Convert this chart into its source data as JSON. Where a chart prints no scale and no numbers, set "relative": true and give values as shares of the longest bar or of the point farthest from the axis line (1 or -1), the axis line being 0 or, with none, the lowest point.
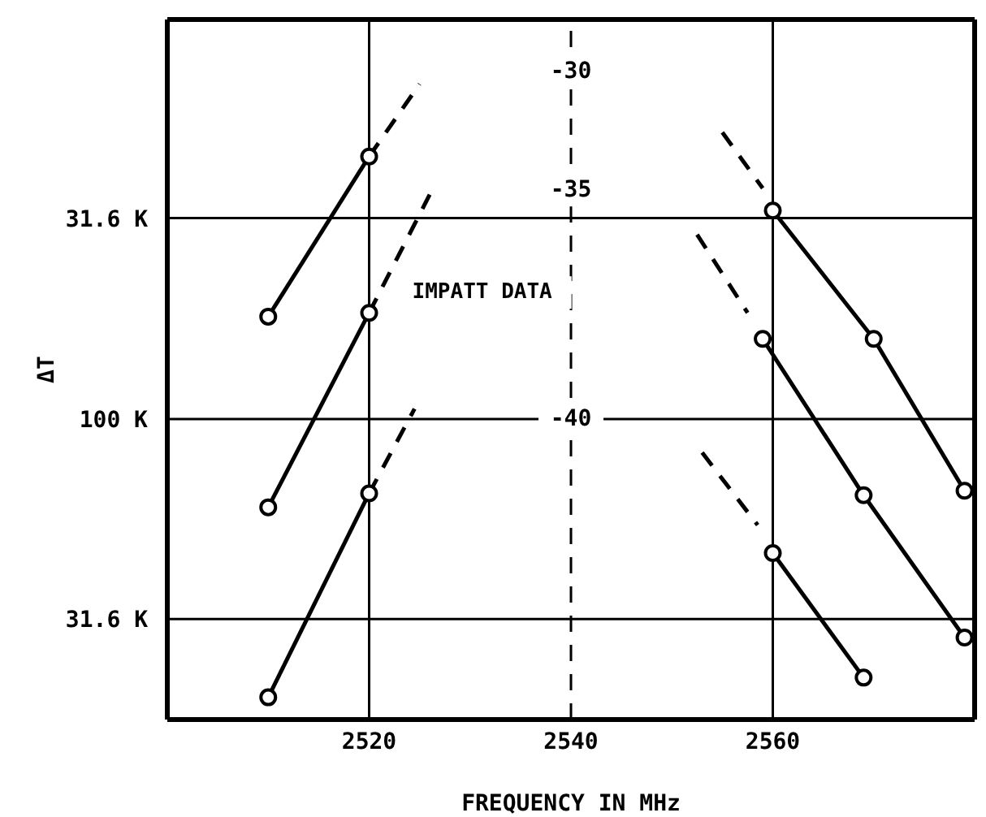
{
  "chart_data": {
    "type": "line",
    "xlabel": "FREQUENCY IN MHz",
    "ylabel": "ΔT",
    "xlim": [
      2500,
      2580
    ],
    "xticks": [
      2520,
      2540,
      2560
    ],
    "relative": true,
    "marker": "circle",
    "line_style": "solid",
    "ref_lines": [
      {
        "axis": "x",
        "value": 2520,
        "color": "#000000",
        "line_style": "solid"
      },
      {
        "axis": "x",
        "value": 2540,
        "color": "#000000",
        "line_style": "dashed"
      },
      {
        "axis": "x",
        "value": 2560,
        "color": "#000000",
        "line_style": "solid"
      },
      {
        "axis": "y",
        "value": 0.158,
        "label": "31.6 K",
        "color": "#000000",
        "line_style": "solid"
      },
      {
        "axis": "y",
        "value": 0.473,
        "label": "100 K",
        "color": "#000000",
        "line_style": "solid"
      },
      {
        "axis": "y",
        "value": 0.789,
        "label": "31.6 K",
        "color": "#000000",
        "line_style": "solid"
      }
    ],
    "annotations": [
      {
        "text": "-30",
        "y": 1.02
      },
      {
        "text": "-35",
        "y": 0.833
      },
      {
        "text": "-40",
        "y": 0.473
      },
      "IMPATT DATA"
    ],
    "series": [
      {
        "color": "#000000",
        "x": [
          2510,
          2520
        ],
        "values": [
          0.634,
          0.886
        ]
      },
      {
        "color": "#000000",
        "x": [
          2520,
          2525
        ],
        "values": [
          0.886,
          1.0
        ],
        "line_style": "dashed",
        "marker": "none"
      },
      {
        "color": "#000000",
        "x": [
          2510,
          2520
        ],
        "values": [
          0.334,
          0.64
        ]
      },
      {
        "color": "#000000",
        "x": [
          2520,
          2526
        ],
        "values": [
          0.64,
          0.826
        ],
        "line_style": "dashed",
        "marker": "none"
      },
      {
        "color": "#000000",
        "x": [
          2510,
          2520
        ],
        "values": [
          0.035,
          0.356
        ]
      },
      {
        "color": "#000000",
        "x": [
          2520,
          2524.5
        ],
        "values": [
          0.356,
          0.489
        ],
        "line_style": "dashed",
        "marker": "none"
      },
      {
        "color": "#000000",
        "x": [
          2560,
          2570,
          2579
        ],
        "values": [
          0.801,
          0.599,
          0.36
        ]
      },
      {
        "color": "#000000",
        "x": [
          2555,
          2559
        ],
        "values": [
          0.924,
          0.836
        ],
        "line_style": "dashed",
        "marker": "none"
      },
      {
        "color": "#000000",
        "x": [
          2559,
          2569,
          2579
        ],
        "values": [
          0.599,
          0.353,
          0.129
        ]
      },
      {
        "color": "#000000",
        "x": [
          2552.5,
          2557.5
        ],
        "values": [
          0.763,
          0.64
        ],
        "line_style": "dashed",
        "marker": "none"
      },
      {
        "color": "#000000",
        "x": [
          2560,
          2569
        ],
        "values": [
          0.262,
          0.066
        ]
      },
      {
        "color": "#000000",
        "x": [
          2553,
          2558.5
        ],
        "values": [
          0.42,
          0.306
        ],
        "line_style": "dashed",
        "marker": "none"
      }
    ]
  }
}
